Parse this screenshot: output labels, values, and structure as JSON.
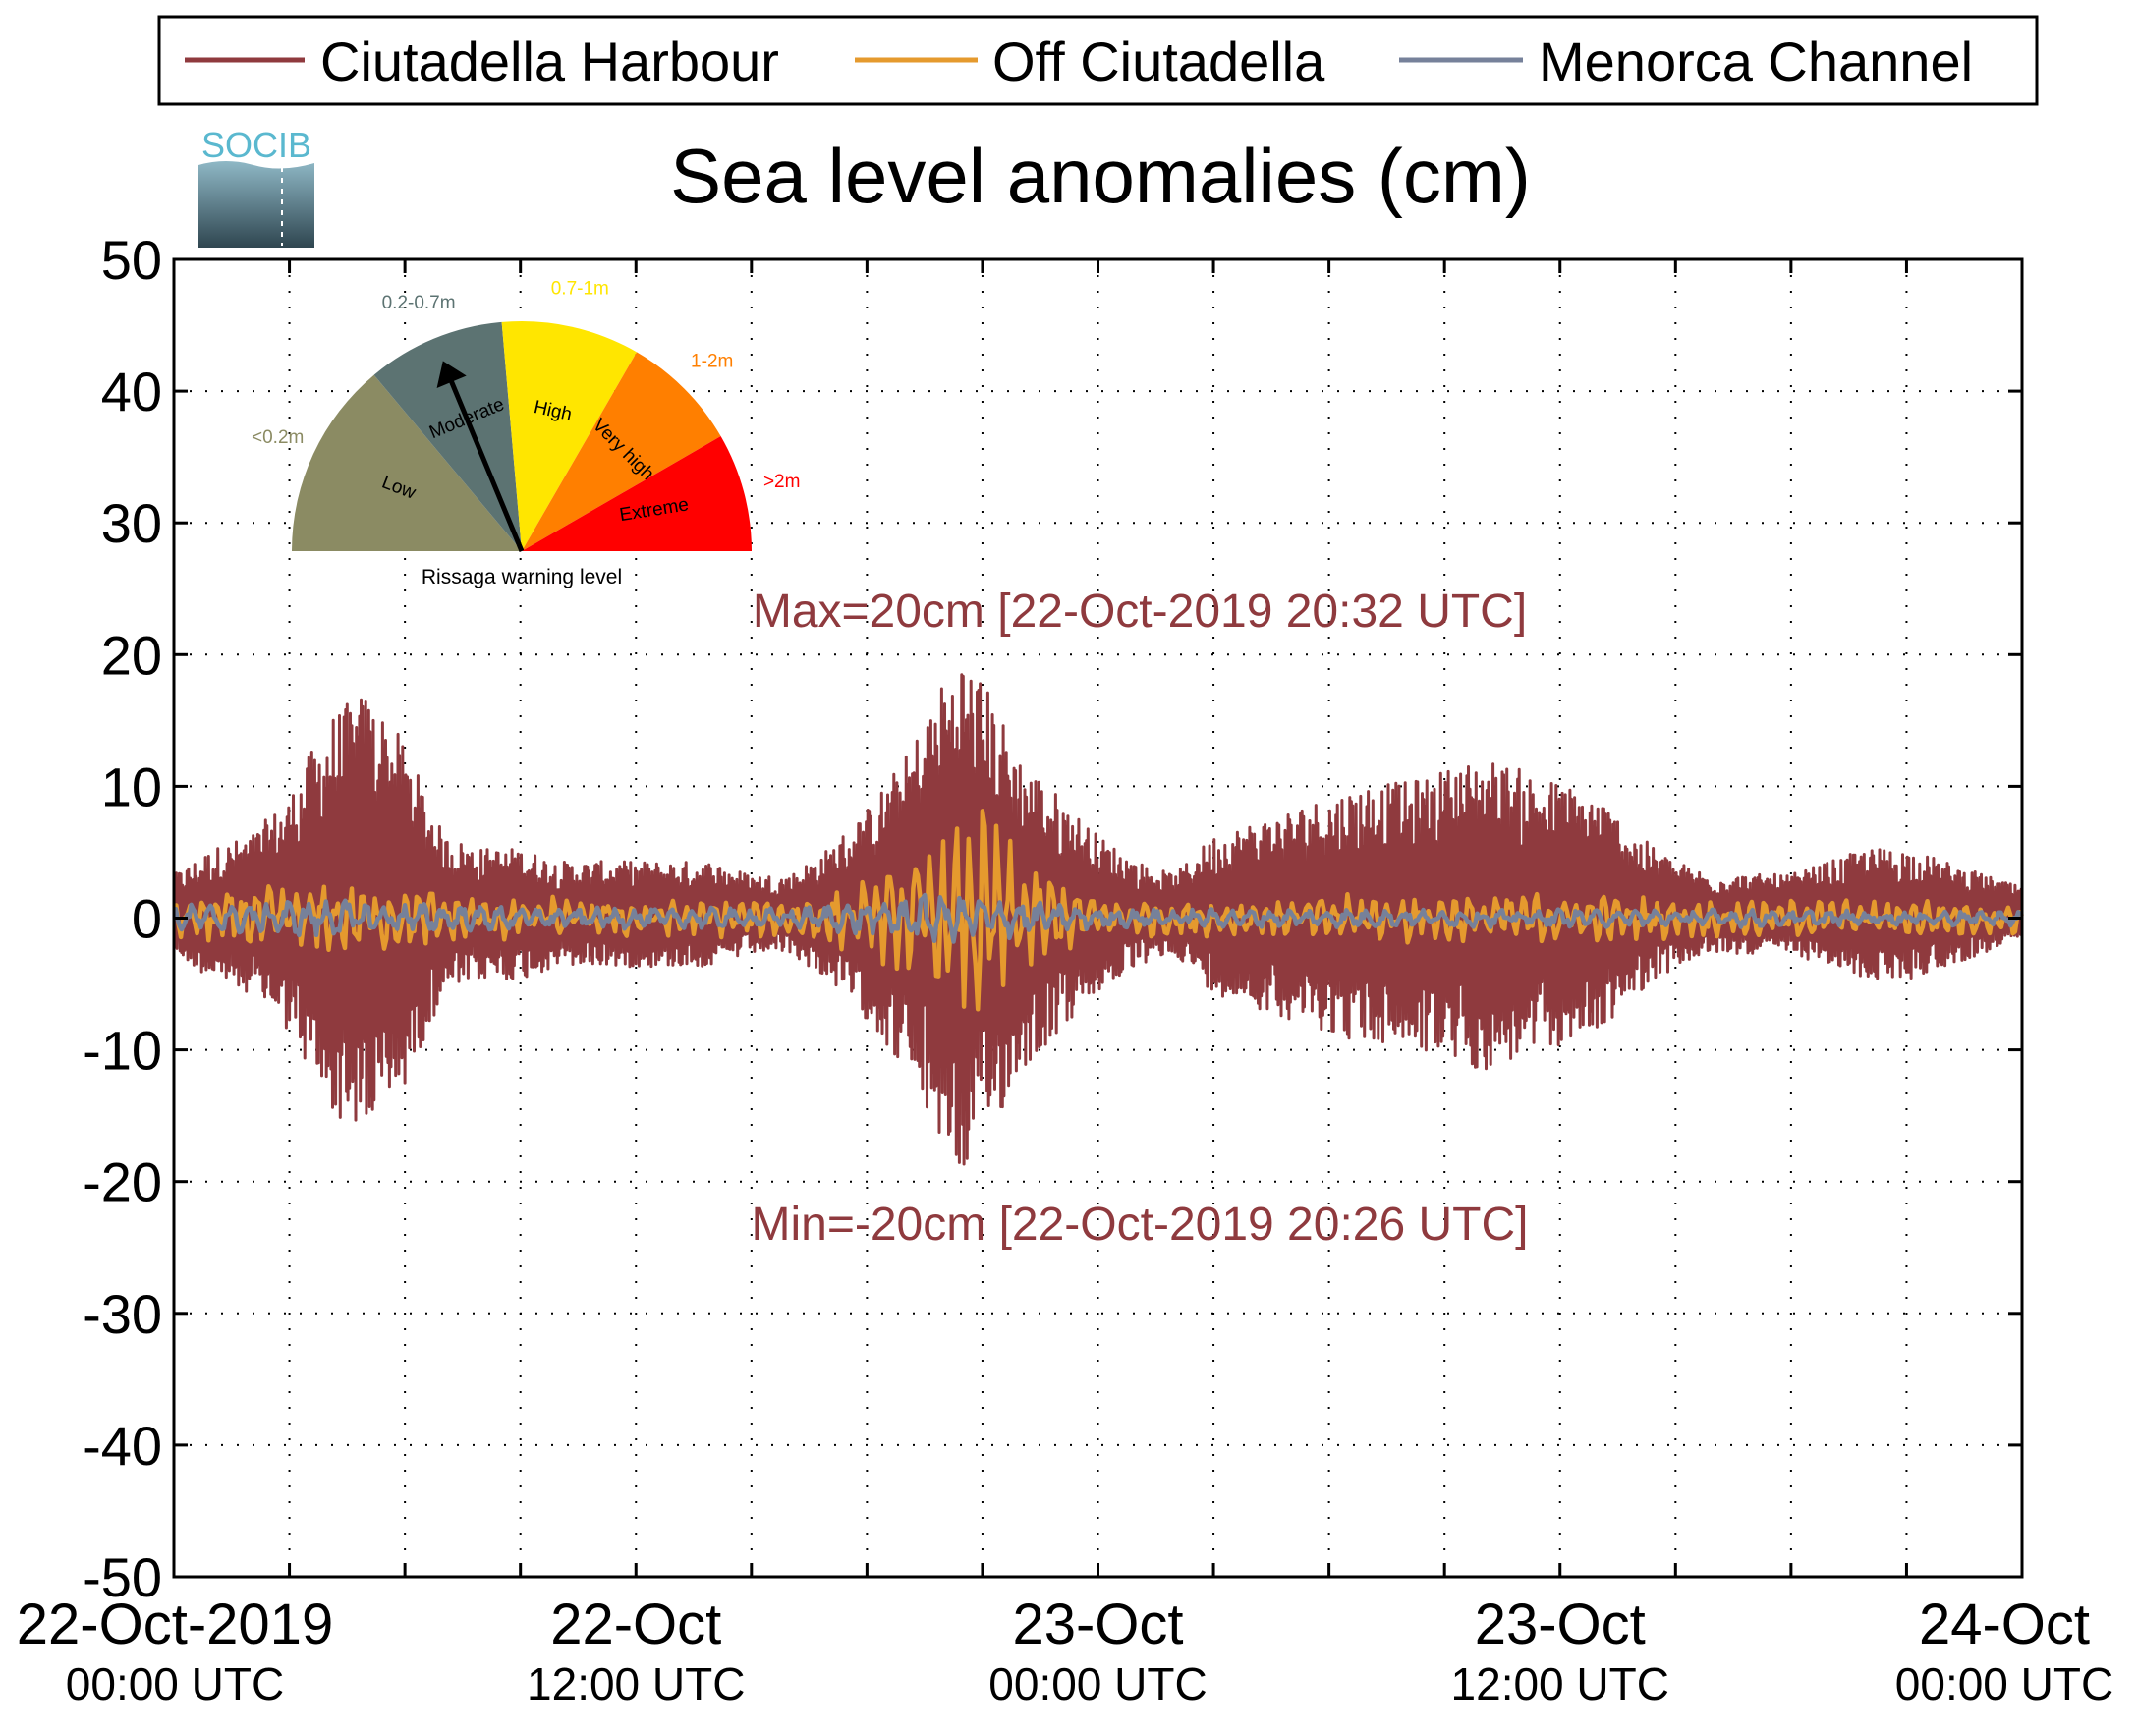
{
  "chart_data": {
    "type": "line",
    "title": "Sea level anomalies (cm)",
    "xlabel": "",
    "ylabel": "",
    "ylim": [
      -50,
      50
    ],
    "yticks": [
      -50,
      -40,
      -30,
      -20,
      -10,
      0,
      10,
      20,
      30,
      40,
      50
    ],
    "xlim": [
      "2019-10-22T00:00Z",
      "2019-10-24T00:00Z"
    ],
    "xticks": [
      {
        "line1": "22-Oct-2019",
        "line2": "00:00 UTC"
      },
      {
        "line1": "22-Oct",
        "line2": "12:00 UTC"
      },
      {
        "line1": "23-Oct",
        "line2": "00:00 UTC"
      },
      {
        "line1": "23-Oct",
        "line2": "12:00 UTC"
      },
      {
        "line1": "24-Oct",
        "line2": "00:00 UTC"
      }
    ],
    "grid": true,
    "legend_position": "top",
    "series": [
      {
        "name": "Ciutadella Harbour",
        "color": "#8f3a3e",
        "x_hours": [
          0,
          1,
          2,
          3,
          4,
          5,
          6,
          7,
          8,
          9,
          10,
          11,
          12,
          13,
          14,
          15,
          16,
          17,
          18,
          19,
          20,
          20.5,
          21,
          22,
          23,
          24,
          25,
          26,
          27,
          28,
          29,
          30,
          31,
          32,
          33,
          34,
          35,
          36,
          37,
          38,
          39,
          40,
          41,
          42,
          43,
          44,
          45,
          46,
          47,
          48
        ],
        "amplitude_cm": [
          3,
          5,
          6,
          9,
          15,
          17,
          13,
          6,
          5,
          5,
          4,
          4,
          4,
          4,
          4,
          3,
          3,
          5,
          8,
          12,
          18,
          20,
          18,
          12,
          9,
          6,
          4,
          3,
          6,
          7,
          8,
          9,
          10,
          10,
          11,
          12,
          11,
          10,
          9,
          6,
          4,
          3,
          3,
          3,
          4,
          5,
          5,
          4,
          3,
          2
        ],
        "max_cm": 20,
        "max_time": "22-Oct-2019 20:32 UTC",
        "min_cm": -20,
        "min_time": "22-Oct-2019 20:26 UTC"
      },
      {
        "name": "Off Ciutadella",
        "color": "#e59a2e",
        "x_hours": [
          0,
          4,
          8,
          12,
          16,
          18,
          20,
          21,
          22,
          24,
          28,
          32,
          36,
          40,
          44,
          48
        ],
        "amplitude_cm": [
          2,
          3,
          2,
          1.5,
          1.5,
          3,
          6,
          9,
          5,
          1.5,
          1.5,
          2,
          2,
          1.5,
          1.5,
          1.5
        ]
      },
      {
        "name": "Menorca Channel",
        "color": "#76819a",
        "x_hours": [
          0,
          4,
          8,
          12,
          16,
          20,
          22,
          24,
          28,
          32,
          36,
          40,
          44,
          48
        ],
        "amplitude_cm": [
          1,
          1.5,
          1,
          0.8,
          0.8,
          2,
          1.5,
          0.8,
          0.7,
          0.7,
          0.7,
          0.7,
          0.6,
          0.6
        ]
      }
    ],
    "annotations": {
      "max_text": "Max=20cm [22-Oct-2019 20:32 UTC]",
      "min_text": "Min=-20cm [22-Oct-2019 20:26 UTC]",
      "color": "#8f3a3e"
    },
    "logo_text": "SOCIB",
    "gauge": {
      "title": "Rissaga warning level",
      "current_level": "Moderate",
      "levels": [
        {
          "name": "Low",
          "range": "<0.2m",
          "color": "#8b8b63",
          "range_color": "#8b8b63"
        },
        {
          "name": "Moderate",
          "range": "0.2-0.7m",
          "color": "#5c7372",
          "range_color": "#5c7372"
        },
        {
          "name": "High",
          "range": "0.7-1m",
          "color": "#ffe600",
          "range_color": "#ffe600"
        },
        {
          "name": "Very high",
          "range": "1-2m",
          "color": "#ff7f00",
          "range_color": "#ff7f00"
        },
        {
          "name": "Extreme",
          "range": ">2m",
          "color": "#ff0000",
          "range_color": "#ff0000"
        }
      ]
    }
  }
}
